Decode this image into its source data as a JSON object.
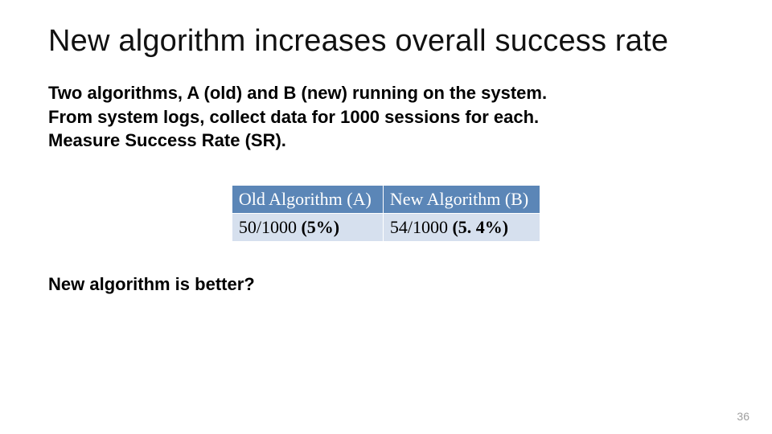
{
  "title": "New algorithm increases overall success rate",
  "body": {
    "line1": "Two algorithms, A (old) and B (new) running on the system.",
    "line2": "From system logs, collect data for 1000 sessions for each.",
    "line3": "Measure Success Rate (SR)."
  },
  "table": {
    "header_bg": "#5b86b7",
    "row_bg": "#d6e0ee",
    "columns": [
      "Old Algorithm (A)",
      "New Algorithm (B)"
    ],
    "rows": [
      {
        "a_value": "50/1000 ",
        "a_pct": "(5%)",
        "b_value": "54/1000 ",
        "b_pct": "(5. 4%)"
      }
    ],
    "font_family": "Times New Roman",
    "header_fontsize": 22,
    "cell_fontsize": 22
  },
  "question": "New algorithm is better?",
  "page_number": "36",
  "colors": {
    "background": "#ffffff",
    "title_text": "#111111",
    "body_text": "#000000",
    "pagenum": "#9f9f9f"
  }
}
